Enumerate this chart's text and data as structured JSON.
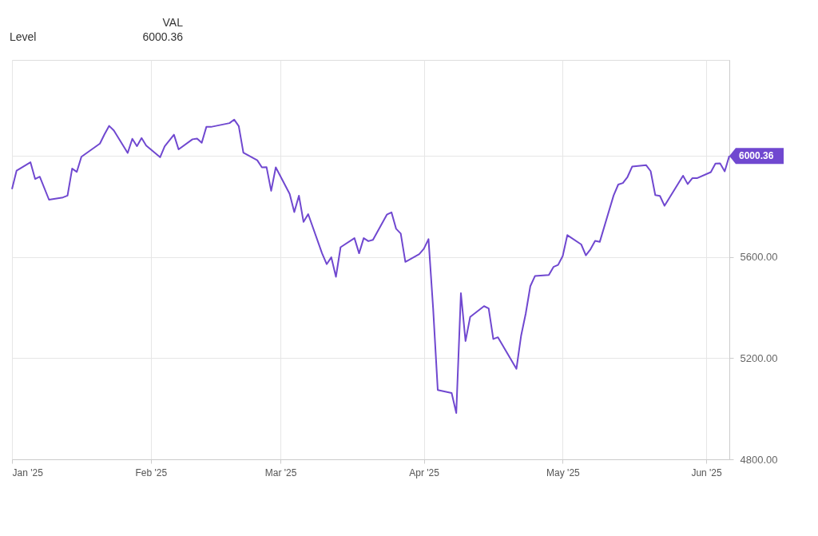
{
  "chart_data": {
    "type": "line",
    "x": [
      "2025-01-02",
      "2025-01-03",
      "2025-01-06",
      "2025-01-07",
      "2025-01-08",
      "2025-01-10",
      "2025-01-13",
      "2025-01-14",
      "2025-01-15",
      "2025-01-16",
      "2025-01-17",
      "2025-01-21",
      "2025-01-22",
      "2025-01-23",
      "2025-01-24",
      "2025-01-27",
      "2025-01-28",
      "2025-01-29",
      "2025-01-30",
      "2025-01-31",
      "2025-02-03",
      "2025-02-04",
      "2025-02-05",
      "2025-02-06",
      "2025-02-07",
      "2025-02-10",
      "2025-02-11",
      "2025-02-12",
      "2025-02-13",
      "2025-02-14",
      "2025-02-18",
      "2025-02-19",
      "2025-02-20",
      "2025-02-21",
      "2025-02-24",
      "2025-02-25",
      "2025-02-26",
      "2025-02-27",
      "2025-02-28",
      "2025-03-03",
      "2025-03-04",
      "2025-03-05",
      "2025-03-06",
      "2025-03-07",
      "2025-03-10",
      "2025-03-11",
      "2025-03-12",
      "2025-03-13",
      "2025-03-14",
      "2025-03-17",
      "2025-03-18",
      "2025-03-19",
      "2025-03-20",
      "2025-03-21",
      "2025-03-24",
      "2025-03-25",
      "2025-03-26",
      "2025-03-27",
      "2025-03-28",
      "2025-03-31",
      "2025-04-01",
      "2025-04-02",
      "2025-04-03",
      "2025-04-04",
      "2025-04-07",
      "2025-04-08",
      "2025-04-09",
      "2025-04-10",
      "2025-04-11",
      "2025-04-14",
      "2025-04-15",
      "2025-04-16",
      "2025-04-17",
      "2025-04-21",
      "2025-04-22",
      "2025-04-23",
      "2025-04-24",
      "2025-04-25",
      "2025-04-28",
      "2025-04-29",
      "2025-04-30",
      "2025-05-01",
      "2025-05-02",
      "2025-05-05",
      "2025-05-06",
      "2025-05-07",
      "2025-05-08",
      "2025-05-09",
      "2025-05-12",
      "2025-05-13",
      "2025-05-14",
      "2025-05-15",
      "2025-05-16",
      "2025-05-19",
      "2025-05-20",
      "2025-05-21",
      "2025-05-22",
      "2025-05-23",
      "2025-05-27",
      "2025-05-28",
      "2025-05-29",
      "2025-05-30",
      "2025-06-02",
      "2025-06-03",
      "2025-06-04",
      "2025-06-05",
      "2025-06-06"
    ],
    "series": [
      {
        "color": "#7048d0",
        "values": [
          5869,
          5942,
          5975,
          5909,
          5918,
          5827,
          5836,
          5843,
          5950,
          5937,
          5997,
          6049,
          6086,
          6119,
          6101,
          6012,
          6068,
          6039,
          6071,
          6041,
          5995,
          6038,
          6061,
          6084,
          6026,
          6066,
          6069,
          6052,
          6115,
          6115,
          6130,
          6144,
          6118,
          6013,
          5983,
          5955,
          5956,
          5862,
          5955,
          5850,
          5778,
          5843,
          5739,
          5770,
          5615,
          5572,
          5599,
          5522,
          5639,
          5675,
          5615,
          5675,
          5663,
          5668,
          5768,
          5777,
          5712,
          5693,
          5581,
          5612,
          5633,
          5671,
          5397,
          5074,
          5062,
          4983,
          5457,
          5268,
          5363,
          5406,
          5397,
          5276,
          5283,
          5158,
          5288,
          5376,
          5485,
          5525,
          5529,
          5561,
          5569,
          5604,
          5687,
          5650,
          5607,
          5631,
          5664,
          5660,
          5844,
          5887,
          5893,
          5917,
          5958,
          5964,
          5940,
          5845,
          5842,
          5803,
          5922,
          5889,
          5912,
          5912,
          5936,
          5970,
          5971,
          5939,
          6000.36
        ]
      }
    ],
    "xlim": [
      "2025-01-02",
      "2025-06-06"
    ],
    "xticks": [
      {
        "value": "2025-01-02",
        "label": "Jan '25"
      },
      {
        "value": "2025-02-01",
        "label": "Feb '25"
      },
      {
        "value": "2025-03-01",
        "label": "Mar '25"
      },
      {
        "value": "2025-04-01",
        "label": "Apr '25"
      },
      {
        "value": "2025-05-01",
        "label": "May '25"
      },
      {
        "value": "2025-06-01",
        "label": "Jun '25"
      }
    ],
    "ylim": [
      4800,
      6380
    ],
    "yticks": [
      {
        "value": 4800,
        "label": "4800.00"
      },
      {
        "value": 5200,
        "label": "5200.00"
      },
      {
        "value": 5600,
        "label": "5600.00"
      },
      {
        "value": 6000,
        "label": null
      }
    ],
    "grid": true,
    "annotations": [
      "VAL",
      "Level",
      "6000.36",
      {
        "text": "6000.36",
        "x": "2025-06-06",
        "y": 6000.36
      }
    ]
  }
}
